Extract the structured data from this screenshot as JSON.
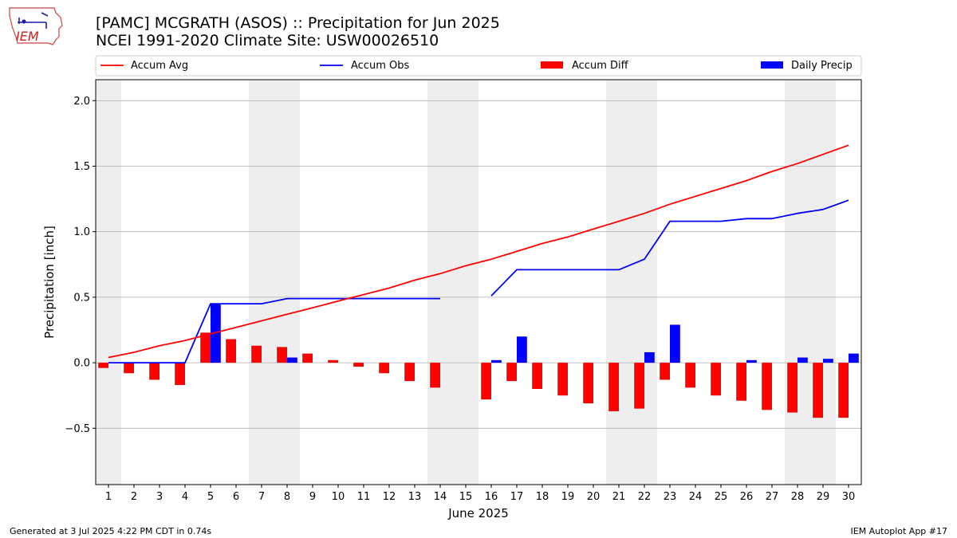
{
  "logo": {
    "text": "IEM",
    "name": "iem-logo"
  },
  "footer": {
    "generated": "Generated at 3 Jul 2025 4:22 PM CDT in 0.74s",
    "app": "IEM Autoplot App #17"
  },
  "colors": {
    "avg": "#ff0000",
    "obs": "#0000ff",
    "diff": "#ff0000",
    "daily": "#0000ff",
    "weekend": "#eeeeee",
    "grid": "#b0b0b0"
  },
  "chart_data": {
    "type": "bar",
    "title": "[PAMC] MCGRATH (ASOS) :: Precipitation for Jun 2025",
    "subtitle": "NCEI 1991-2020 Climate Site: USW00026510",
    "xlabel": "June 2025",
    "ylabel": "Precipitation [inch]",
    "ylim": [
      -0.93,
      2.16
    ],
    "yticks": [
      -0.5,
      0.0,
      0.5,
      1.0,
      1.5,
      2.0
    ],
    "ytick_labels": [
      "−0.5",
      "0.0",
      "0.5",
      "1.0",
      "1.5",
      "2.0"
    ],
    "x": [
      1,
      2,
      3,
      4,
      5,
      6,
      7,
      8,
      9,
      10,
      11,
      12,
      13,
      14,
      15,
      16,
      17,
      18,
      19,
      20,
      21,
      22,
      23,
      24,
      25,
      26,
      27,
      28,
      29,
      30
    ],
    "grid": "y",
    "legend_position": "top",
    "shaded_day_ranges": [
      [
        0.5,
        1.5
      ],
      [
        6.5,
        8.5
      ],
      [
        13.5,
        15.5
      ],
      [
        20.5,
        22.5
      ],
      [
        27.5,
        29.5
      ]
    ],
    "series": [
      {
        "name": "Accum Avg",
        "kind": "line",
        "values": [
          0.04,
          0.08,
          0.13,
          0.17,
          0.22,
          0.27,
          0.32,
          0.37,
          0.42,
          0.47,
          0.52,
          0.57,
          0.63,
          0.68,
          0.74,
          0.79,
          0.85,
          0.91,
          0.96,
          1.02,
          1.08,
          1.14,
          1.21,
          1.27,
          1.33,
          1.39,
          1.46,
          1.52,
          1.59,
          1.66
        ]
      },
      {
        "name": "Accum Obs",
        "kind": "line",
        "values": [
          0.0,
          0.0,
          0.0,
          0.0,
          0.45,
          0.45,
          0.45,
          0.49,
          0.49,
          0.49,
          0.49,
          0.49,
          0.49,
          0.49,
          null,
          0.51,
          0.71,
          0.71,
          0.71,
          0.71,
          0.71,
          0.79,
          1.08,
          1.08,
          1.08,
          1.1,
          1.1,
          1.14,
          1.17,
          1.24
        ]
      },
      {
        "name": "Accum Diff",
        "kind": "bar",
        "values": [
          -0.04,
          -0.08,
          -0.13,
          -0.17,
          0.23,
          0.18,
          0.13,
          0.12,
          0.07,
          0.02,
          -0.03,
          -0.08,
          -0.14,
          -0.19,
          null,
          -0.28,
          -0.14,
          -0.2,
          -0.25,
          -0.31,
          -0.37,
          -0.35,
          -0.13,
          -0.19,
          -0.25,
          -0.29,
          -0.36,
          -0.38,
          -0.42,
          -0.42
        ]
      },
      {
        "name": "Daily Precip",
        "kind": "bar",
        "values": [
          0,
          0,
          0,
          0,
          0.45,
          0,
          0,
          0.04,
          0,
          0,
          0,
          0,
          0,
          0,
          0,
          0.02,
          0.2,
          0,
          0,
          0,
          0,
          0.08,
          0.29,
          0,
          0,
          0.02,
          0,
          0.04,
          0.03,
          0.07
        ]
      }
    ]
  }
}
